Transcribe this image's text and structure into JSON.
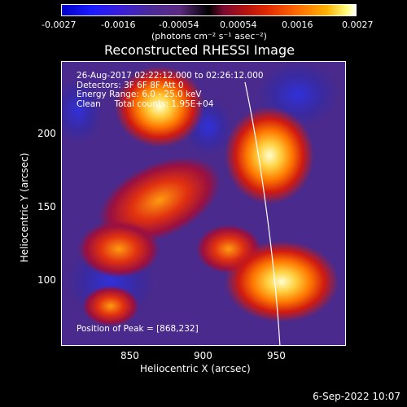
{
  "colorbar": {
    "ticks": [
      "-0.0027",
      "-0.0016",
      "-0.00054",
      "0.00054",
      "0.0016",
      "0.0027"
    ],
    "unit": "(photons cm⁻² s⁻¹ asec⁻²)"
  },
  "title": "Reconstructed RHESSI Image",
  "info_lines": [
    "26-Aug-2017 02:22:12.000 to 02:26:12.000",
    "Detectors: 3F 6F 8F Att 0",
    "Energy Range: 6.0 - 25.0 keV",
    "Clean     Total counts: 1.95E+04"
  ],
  "peak_text": "Position of Peak = [868,232]",
  "x_ticks": [
    "850",
    "900",
    "950"
  ],
  "y_ticks": [
    "200",
    "150",
    "100"
  ],
  "xlabel": "Heliocentric X (arcsec)",
  "ylabel": "Heliocentric Y (arcsec)",
  "timestamp": "6-Sep-2022 10:07",
  "colors": {
    "background": "#000000",
    "limb_line": "#ffffff"
  }
}
